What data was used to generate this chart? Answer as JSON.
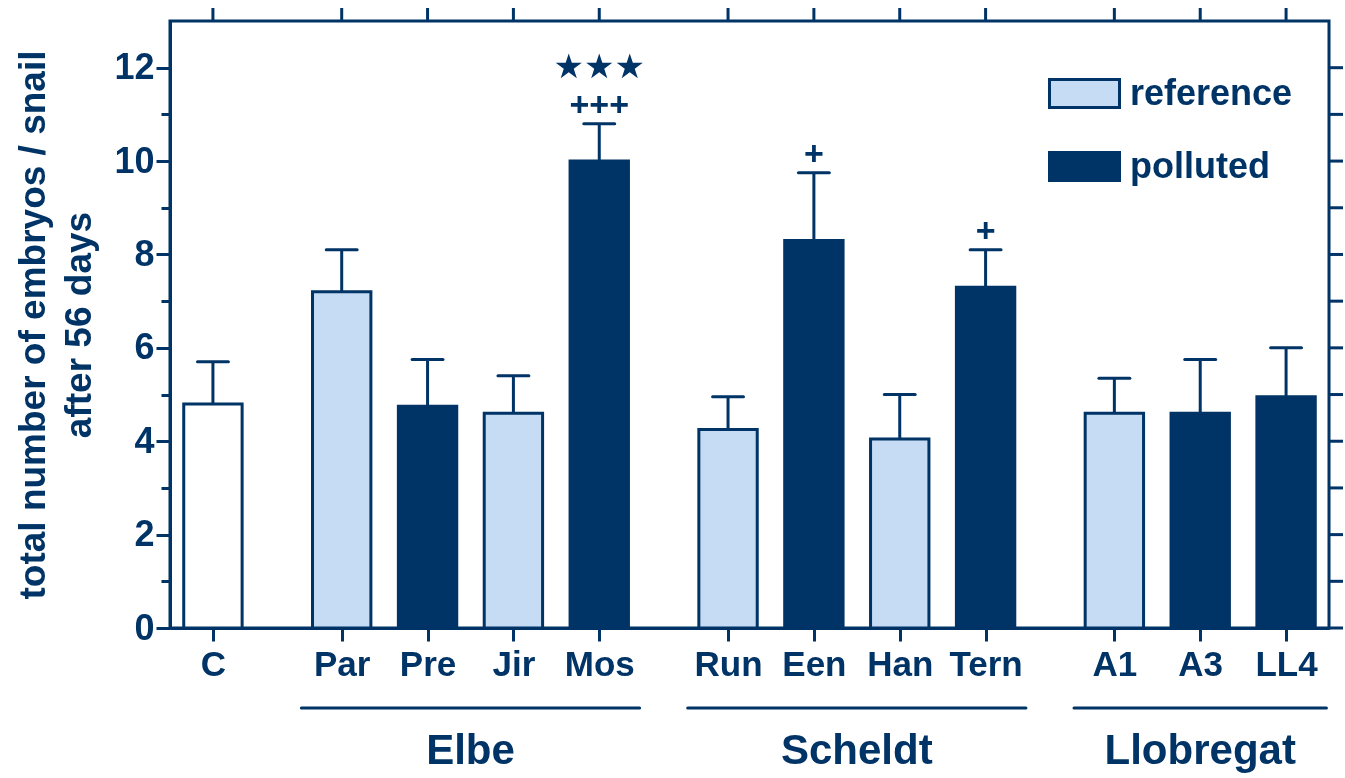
{
  "chart_data": {
    "type": "bar",
    "categories": [
      "C",
      null,
      "Par",
      "Pre",
      "Jir",
      "Mos",
      null,
      "Run",
      "Een",
      "Han",
      "Tern",
      null,
      "A1",
      "A3",
      "LL4"
    ],
    "series": [
      {
        "color": "#ffffff",
        "values": [
          4.8,
          null,
          null,
          null,
          null,
          null,
          null,
          null,
          null,
          null,
          null,
          null,
          null,
          null,
          null
        ],
        "errors": [
          [
            4.8,
            5.7
          ],
          null,
          null,
          null,
          null,
          null,
          null,
          null,
          null,
          null,
          null,
          null,
          null,
          null,
          null
        ]
      },
      {
        "name": "reference",
        "color": "#c6dcf5",
        "values": [
          null,
          null,
          7.2,
          null,
          4.6,
          null,
          null,
          4.25,
          null,
          4.05,
          null,
          null,
          4.6,
          null,
          null
        ],
        "errors": [
          null,
          null,
          [
            7.2,
            8.1
          ],
          null,
          [
            4.6,
            5.4
          ],
          null,
          null,
          [
            4.25,
            4.95
          ],
          null,
          [
            4.05,
            5.0
          ],
          null,
          null,
          [
            4.6,
            5.35
          ],
          null,
          null
        ]
      },
      {
        "name": "polluted",
        "color": "#003366",
        "values": [
          null,
          null,
          null,
          4.75,
          null,
          10.0,
          null,
          null,
          8.3,
          null,
          7.3,
          null,
          null,
          4.6,
          4.95
        ],
        "errors": [
          null,
          null,
          null,
          [
            4.75,
            5.75
          ],
          null,
          [
            10.0,
            10.8
          ],
          null,
          null,
          [
            8.3,
            9.75
          ],
          null,
          [
            7.3,
            8.1
          ],
          null,
          null,
          [
            4.6,
            5.75
          ],
          [
            4.95,
            6.0
          ]
        ]
      }
    ],
    "stacked": true,
    "ylabel": "total number of embryos / snail\nafter 56 days",
    "ylim": [
      0,
      13
    ],
    "yticks": [
      0,
      {
        "value": 1,
        "label": null
      },
      2,
      {
        "value": 3,
        "label": null
      },
      4,
      {
        "value": 5,
        "label": null
      },
      6,
      {
        "value": 7,
        "label": null
      },
      8,
      {
        "value": 9,
        "label": null
      },
      10,
      {
        "value": 11,
        "label": null
      },
      12
    ],
    "legend": "top right",
    "annotations": [
      {
        "text": "+++",
        "x": "Mos",
        "y": 10.0
      },
      {
        "text": "★★★",
        "x": "Mos",
        "y": 10.0
      },
      {
        "text": "+",
        "x": "Een",
        "y": 8.3
      },
      {
        "text": "+",
        "x": "Tern",
        "y": 7.3
      },
      "Elbe",
      "Scheldt",
      "Llobregat"
    ]
  }
}
